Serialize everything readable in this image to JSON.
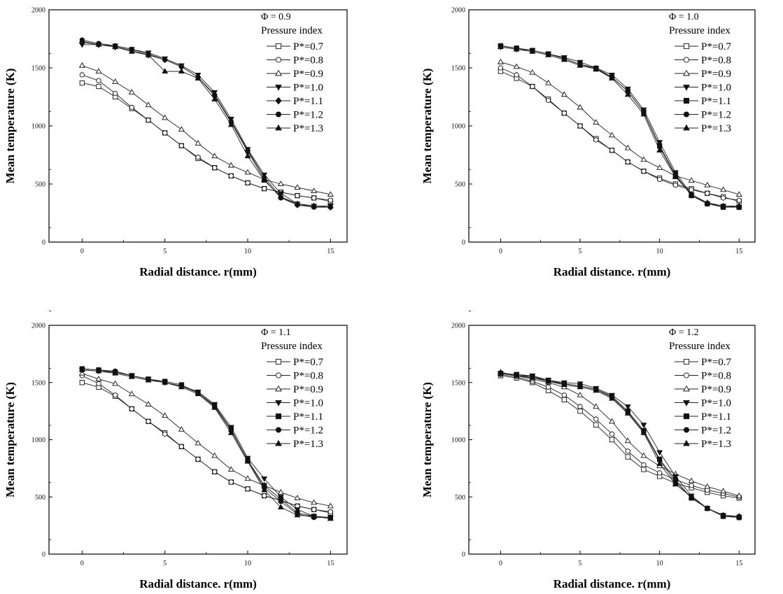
{
  "chart_data": [
    {
      "type": "line",
      "panel_label": "Φ = 0.9",
      "xlabel": "Radial distance. r(mm)",
      "ylabel": "Mean temperature (K)",
      "xlim": [
        -2,
        16
      ],
      "ylim": [
        0,
        2000
      ],
      "xticks": [
        0,
        5,
        10,
        15
      ],
      "yticks": [
        0,
        500,
        1000,
        1500,
        2000
      ],
      "legend_title": "Pressure index",
      "legend_position": "top-right",
      "x": [
        0,
        1,
        2,
        3,
        4,
        5,
        6,
        7,
        8,
        9,
        10,
        11,
        12,
        13,
        14,
        15
      ],
      "series": [
        {
          "name": "P*=0.7",
          "marker": "square-open",
          "values": [
            1370,
            1340,
            1250,
            1150,
            1050,
            940,
            830,
            720,
            640,
            570,
            510,
            460,
            430,
            400,
            380,
            350
          ]
        },
        {
          "name": "P*=0.8",
          "marker": "circle-open",
          "values": [
            1440,
            1390,
            1280,
            1160,
            1050,
            940,
            830,
            730,
            640,
            570,
            510,
            460,
            430,
            400,
            380,
            360
          ]
        },
        {
          "name": "P*=0.9",
          "marker": "triangle-open",
          "values": [
            1520,
            1470,
            1380,
            1290,
            1180,
            1070,
            970,
            850,
            740,
            660,
            600,
            540,
            500,
            470,
            440,
            410
          ]
        },
        {
          "name": "P*=1.0",
          "marker": "triangle-down-filled",
          "values": [
            1700,
            1700,
            1690,
            1660,
            1630,
            1580,
            1520,
            1440,
            1290,
            1060,
            800,
            580,
            420,
            330,
            310,
            310
          ]
        },
        {
          "name": "P*=1.1",
          "marker": "diamond-filled",
          "values": [
            1720,
            1700,
            1680,
            1650,
            1610,
            1570,
            1510,
            1420,
            1270,
            1040,
            790,
            560,
            390,
            320,
            310,
            300
          ]
        },
        {
          "name": "P*=1.2",
          "marker": "circle-filled",
          "values": [
            1740,
            1710,
            1690,
            1660,
            1620,
            1570,
            1510,
            1420,
            1260,
            1030,
            780,
            540,
            380,
            320,
            300,
            300
          ]
        },
        {
          "name": "P*=1.3",
          "marker": "triangle-filled",
          "values": [
            1730,
            1700,
            1680,
            1640,
            1610,
            1470,
            1470,
            1410,
            1230,
            1010,
            740,
            530,
            390,
            330,
            310,
            310
          ]
        }
      ]
    },
    {
      "type": "line",
      "panel_label": "Φ = 1.0",
      "xlabel": "Radial distance. r(mm)",
      "ylabel": "Mean temperature (K)",
      "xlim": [
        -2,
        16
      ],
      "ylim": [
        0,
        2000
      ],
      "xticks": [
        0,
        5,
        10,
        15
      ],
      "yticks": [
        0,
        500,
        1000,
        1500,
        2000
      ],
      "legend_title": "Pressure index",
      "legend_position": "top-right",
      "x": [
        0,
        1,
        2,
        3,
        4,
        5,
        6,
        7,
        8,
        9,
        10,
        11,
        12,
        13,
        14,
        15
      ],
      "series": [
        {
          "name": "P*=0.7",
          "marker": "square-open",
          "values": [
            1470,
            1410,
            1340,
            1230,
            1110,
            1000,
            890,
            790,
            690,
            610,
            550,
            500,
            460,
            420,
            390,
            350
          ]
        },
        {
          "name": "P*=0.8",
          "marker": "circle-open",
          "values": [
            1500,
            1440,
            1340,
            1220,
            1110,
            1000,
            880,
            790,
            690,
            610,
            540,
            490,
            450,
            420,
            380,
            360
          ]
        },
        {
          "name": "P*=0.9",
          "marker": "triangle-open",
          "values": [
            1550,
            1510,
            1460,
            1370,
            1270,
            1160,
            1030,
            920,
            810,
            710,
            640,
            570,
            530,
            490,
            450,
            410
          ]
        },
        {
          "name": "P*=1.0",
          "marker": "triangle-down-filled",
          "values": [
            1680,
            1660,
            1650,
            1620,
            1590,
            1550,
            1500,
            1440,
            1320,
            1140,
            860,
            600,
            410,
            330,
            310,
            300
          ]
        },
        {
          "name": "P*=1.1",
          "marker": "square-filled",
          "values": [
            1690,
            1670,
            1650,
            1620,
            1580,
            1530,
            1490,
            1420,
            1300,
            1120,
            830,
            580,
            400,
            330,
            300,
            300
          ]
        },
        {
          "name": "P*=1.2",
          "marker": "circle-filled",
          "values": [
            1690,
            1670,
            1650,
            1620,
            1580,
            1530,
            1500,
            1420,
            1300,
            1120,
            820,
            570,
            410,
            330,
            310,
            300
          ]
        },
        {
          "name": "P*=1.3",
          "marker": "triangle-filled",
          "values": [
            1680,
            1660,
            1640,
            1610,
            1570,
            1520,
            1490,
            1410,
            1270,
            1100,
            790,
            560,
            410,
            340,
            310,
            310
          ]
        }
      ]
    },
    {
      "type": "line",
      "panel_label": "Φ = 1.1",
      "xlabel": "Radial distance. r(mm)",
      "ylabel": "Mean temperature (K)",
      "xlim": [
        -2,
        16
      ],
      "ylim": [
        0,
        2000
      ],
      "xticks": [
        0,
        5,
        10,
        15
      ],
      "yticks": [
        0,
        500,
        1000,
        1500,
        2000
      ],
      "legend_title": "Pressure index",
      "legend_position": "top-right",
      "x": [
        0,
        1,
        2,
        3,
        4,
        5,
        6,
        7,
        8,
        9,
        10,
        11,
        12,
        13,
        14,
        15
      ],
      "series": [
        {
          "name": "P*=0.7",
          "marker": "square-open",
          "values": [
            1500,
            1460,
            1380,
            1270,
            1160,
            1060,
            940,
            830,
            720,
            630,
            570,
            510,
            470,
            420,
            390,
            360
          ]
        },
        {
          "name": "P*=0.8",
          "marker": "circle-open",
          "values": [
            1560,
            1490,
            1390,
            1270,
            1160,
            1050,
            940,
            830,
            720,
            630,
            570,
            510,
            470,
            420,
            390,
            370
          ]
        },
        {
          "name": "P*=0.9",
          "marker": "triangle-open",
          "values": [
            1580,
            1530,
            1490,
            1400,
            1310,
            1210,
            1090,
            970,
            860,
            740,
            660,
            600,
            540,
            490,
            450,
            420
          ]
        },
        {
          "name": "P*=1.0",
          "marker": "triangle-down-filled",
          "values": [
            1610,
            1600,
            1590,
            1560,
            1530,
            1500,
            1470,
            1420,
            1310,
            1110,
            840,
            660,
            500,
            390,
            330,
            320
          ]
        },
        {
          "name": "P*=1.1",
          "marker": "square-filled",
          "values": [
            1620,
            1610,
            1590,
            1560,
            1530,
            1510,
            1480,
            1410,
            1300,
            1090,
            820,
            600,
            480,
            360,
            330,
            320
          ]
        },
        {
          "name": "P*=1.2",
          "marker": "circle-filled",
          "values": [
            1620,
            1610,
            1600,
            1560,
            1530,
            1500,
            1470,
            1410,
            1290,
            1080,
            820,
            580,
            460,
            350,
            320,
            320
          ]
        },
        {
          "name": "P*=1.3",
          "marker": "triangle-filled",
          "values": [
            1610,
            1600,
            1580,
            1550,
            1520,
            1500,
            1460,
            1400,
            1280,
            1060,
            810,
            560,
            410,
            340,
            330,
            310
          ]
        }
      ]
    },
    {
      "type": "line",
      "panel_label": "Φ = 1.2",
      "xlabel": "Radial distance. r(mm)",
      "ylabel": "Mean temperature (K)",
      "xlim": [
        -2,
        16
      ],
      "ylim": [
        0,
        2000
      ],
      "xticks": [
        0,
        5,
        10,
        15
      ],
      "yticks": [
        0,
        500,
        1000,
        1500,
        2000
      ],
      "legend_title": "Pressure index",
      "legend_position": "top-right",
      "x": [
        0,
        1,
        2,
        3,
        4,
        5,
        6,
        7,
        8,
        9,
        10,
        11,
        12,
        13,
        14,
        15
      ],
      "series": [
        {
          "name": "P*=0.7",
          "marker": "square-open",
          "values": [
            1560,
            1540,
            1500,
            1430,
            1350,
            1250,
            1130,
            1000,
            850,
            740,
            680,
            620,
            580,
            540,
            510,
            490
          ]
        },
        {
          "name": "P*=0.8",
          "marker": "circle-open",
          "values": [
            1570,
            1550,
            1510,
            1460,
            1390,
            1290,
            1180,
            1050,
            900,
            780,
            710,
            650,
            600,
            560,
            530,
            500
          ]
        },
        {
          "name": "P*=0.9",
          "marker": "triangle-open",
          "values": [
            1580,
            1560,
            1530,
            1500,
            1460,
            1390,
            1290,
            1160,
            990,
            860,
            770,
            700,
            640,
            590,
            550,
            510
          ]
        },
        {
          "name": "P*=1.0",
          "marker": "triangle-down-filled",
          "values": [
            1580,
            1570,
            1560,
            1520,
            1500,
            1490,
            1450,
            1390,
            1290,
            1130,
            890,
            680,
            510,
            400,
            340,
            320
          ]
        },
        {
          "name": "P*=1.1",
          "marker": "square-filled",
          "values": [
            1580,
            1570,
            1550,
            1520,
            1490,
            1470,
            1440,
            1380,
            1250,
            1080,
            830,
            650,
            490,
            400,
            330,
            320
          ]
        },
        {
          "name": "P*=1.2",
          "marker": "circle-filled",
          "values": [
            1580,
            1560,
            1550,
            1510,
            1490,
            1470,
            1440,
            1370,
            1240,
            1070,
            820,
            630,
            490,
            400,
            340,
            330
          ]
        },
        {
          "name": "P*=1.3",
          "marker": "triangle-filled",
          "values": [
            1590,
            1560,
            1540,
            1510,
            1480,
            1460,
            1430,
            1360,
            1230,
            1060,
            790,
            610,
            500,
            400,
            340,
            330
          ]
        }
      ]
    }
  ]
}
